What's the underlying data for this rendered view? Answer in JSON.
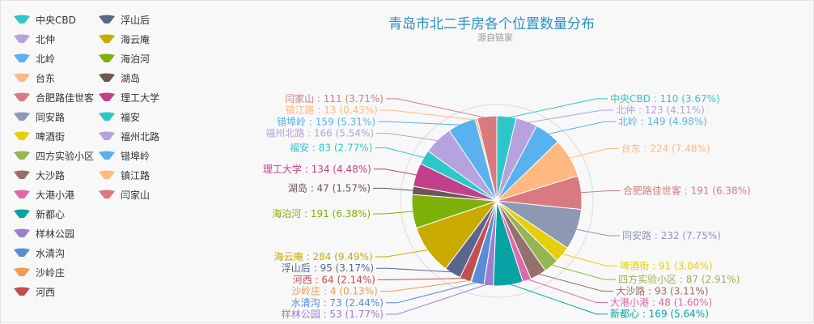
{
  "chart_data": {
    "type": "pie",
    "title": "青岛市北二手房各个位置数量分布",
    "subtitle": "源自链家",
    "legend_position": "left",
    "slices": [
      {
        "name": "中央CBD",
        "value": 110,
        "percent": "3.67%",
        "color": "#2ec7c9"
      },
      {
        "name": "北仲",
        "value": 123,
        "percent": "4.11%",
        "color": "#b6a2de"
      },
      {
        "name": "北岭",
        "value": 149,
        "percent": "4.98%",
        "color": "#5ab1ef"
      },
      {
        "name": "台东",
        "value": 224,
        "percent": "7.48%",
        "color": "#ffb980"
      },
      {
        "name": "合肥路佳世客",
        "value": 191,
        "percent": "6.38%",
        "color": "#d87a80"
      },
      {
        "name": "同安路",
        "value": 232,
        "percent": "7.75%",
        "color": "#8d98b3"
      },
      {
        "name": "啤酒街",
        "value": 91,
        "percent": "3.04%",
        "color": "#e5cf0d"
      },
      {
        "name": "四方实验小区",
        "value": 87,
        "percent": "2.91%",
        "color": "#97b552"
      },
      {
        "name": "大沙路",
        "value": 93,
        "percent": "3.11%",
        "color": "#95706d"
      },
      {
        "name": "大港小港",
        "value": 48,
        "percent": "1.60%",
        "color": "#dc69aa"
      },
      {
        "name": "新都心",
        "value": 169,
        "percent": "5.64%",
        "color": "#07a2a4"
      },
      {
        "name": "样林公园",
        "value": 53,
        "percent": "1.77%",
        "color": "#9a7fd1"
      },
      {
        "name": "水清沟",
        "value": 73,
        "percent": "2.44%",
        "color": "#588dd5"
      },
      {
        "name": "沙岭庄",
        "value": 4,
        "percent": "0.13%",
        "color": "#f5994e"
      },
      {
        "name": "河西",
        "value": 64,
        "percent": "2.14%",
        "color": "#c05050"
      },
      {
        "name": "浮山后",
        "value": 95,
        "percent": "3.17%",
        "color": "#59678c"
      },
      {
        "name": "海云庵",
        "value": 284,
        "percent": "9.49%",
        "color": "#c9ab00"
      },
      {
        "name": "海泊河",
        "value": 191,
        "percent": "6.38%",
        "color": "#7eb00a"
      },
      {
        "name": "湖岛",
        "value": 47,
        "percent": "1.57%",
        "color": "#6f5553"
      },
      {
        "name": "理工大学",
        "value": 134,
        "percent": "4.48%",
        "color": "#c14089"
      },
      {
        "name": "福安",
        "value": 83,
        "percent": "2.77%",
        "color": "#2ec7c9"
      },
      {
        "name": "福州北路",
        "value": 166,
        "percent": "5.54%",
        "color": "#b6a2de"
      },
      {
        "name": "错埠岭",
        "value": 159,
        "percent": "5.31%",
        "color": "#5ab1ef"
      },
      {
        "name": "镇江路",
        "value": 13,
        "percent": "0.43%",
        "color": "#ffb980"
      },
      {
        "name": "闫家山",
        "value": 111,
        "percent": "3.71%",
        "color": "#d87a80"
      }
    ]
  }
}
